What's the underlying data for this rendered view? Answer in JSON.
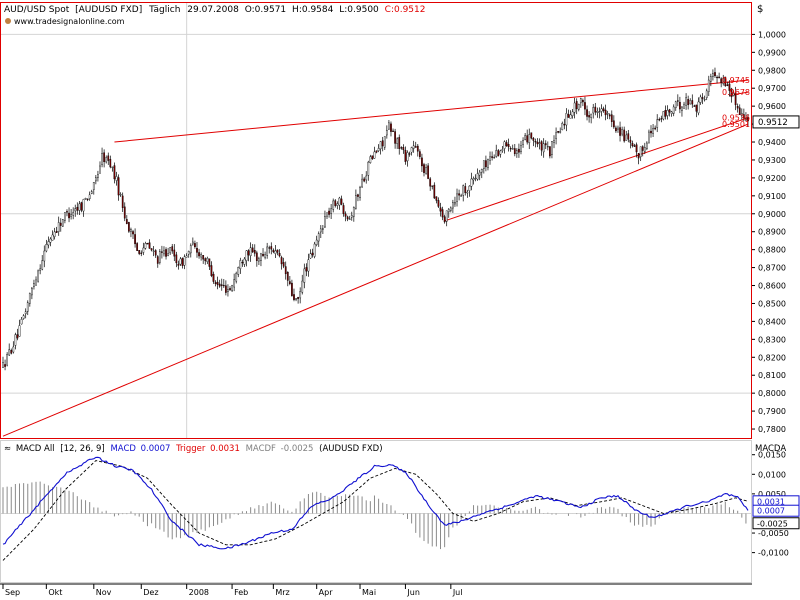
{
  "colors": {
    "up": "#ffffff",
    "down": "#7a0000",
    "wick": "#000000",
    "trend": "#e00000",
    "macd": "#1010d0",
    "trigger": "#000000",
    "hist": "#8a8a8a",
    "grid": "#d4d4d4",
    "frame": "#e00000",
    "label_red": "#e00000",
    "label_blue": "#1010d0"
  },
  "header": {
    "symbol": "AUD/USD Spot",
    "source": "[AUDUSD FXD]",
    "period": "Täglich",
    "date": "29.07.2008",
    "open_label": "O:",
    "open": "0.9571",
    "high_label": "H:",
    "high": "0.9584",
    "low_label": "L:",
    "low": "0.9500",
    "close_label": "C:",
    "close": "0.9512",
    "site": "www.tradesignalonline.com",
    "currency_label": "$"
  },
  "macd_header": {
    "name": "MACD All",
    "params": "[12, 26, 9]",
    "macd_label": "MACD",
    "macd_value": "0.0007",
    "trigger_label": "Trigger",
    "trigger_value": "0.0031",
    "macdf_label": "MACDF",
    "macdf_value": "-0.0025",
    "source": "(AUDUSD FXD)",
    "axis_title": "MACDA"
  },
  "chart_data": [
    {
      "type": "candlestick",
      "title": "AUD/USD Spot [AUDUSD FXD] Täglich",
      "ylim": [
        0.775,
        1.0175
      ],
      "y_ticks": [
        "1,0000",
        "0,9900",
        "0,9800",
        "0,9700",
        "0,9600",
        "0,9500",
        "0,9400",
        "0,9300",
        "0,9200",
        "0,9100",
        "0,9000",
        "0,8900",
        "0,8800",
        "0,8700",
        "0,8600",
        "0,8500",
        "0,8400",
        "0,8300",
        "0,8200",
        "0,8100",
        "0,8000",
        "0,7900",
        "0,7800"
      ],
      "x_ticks": [
        "Sep",
        "Okt",
        "Nov",
        "Dez",
        "2008",
        "Feb",
        "Mrz",
        "Apr",
        "Mai",
        "Jun",
        "Jul"
      ],
      "anchors": [
        [
          0,
          0.815
        ],
        [
          8,
          0.835
        ],
        [
          15,
          0.862
        ],
        [
          22,
          0.885
        ],
        [
          30,
          0.899
        ],
        [
          38,
          0.905
        ],
        [
          44,
          0.915
        ],
        [
          48,
          0.932
        ],
        [
          52,
          0.928
        ],
        [
          55,
          0.918
        ],
        [
          60,
          0.895
        ],
        [
          65,
          0.88
        ],
        [
          70,
          0.882
        ],
        [
          75,
          0.875
        ],
        [
          80,
          0.88
        ],
        [
          86,
          0.872
        ],
        [
          92,
          0.882
        ],
        [
          98,
          0.875
        ],
        [
          104,
          0.86
        ],
        [
          110,
          0.858
        ],
        [
          114,
          0.87
        ],
        [
          118,
          0.88
        ],
        [
          124,
          0.875
        ],
        [
          130,
          0.882
        ],
        [
          136,
          0.87
        ],
        [
          140,
          0.855
        ],
        [
          143,
          0.85
        ],
        [
          146,
          0.868
        ],
        [
          150,
          0.878
        ],
        [
          156,
          0.898
        ],
        [
          162,
          0.908
        ],
        [
          168,
          0.898
        ],
        [
          174,
          0.918
        ],
        [
          178,
          0.93
        ],
        [
          183,
          0.938
        ],
        [
          187,
          0.948
        ],
        [
          191,
          0.94
        ],
        [
          195,
          0.932
        ],
        [
          199,
          0.938
        ],
        [
          203,
          0.928
        ],
        [
          207,
          0.918
        ],
        [
          211,
          0.905
        ],
        [
          214,
          0.896
        ],
        [
          217,
          0.905
        ],
        [
          221,
          0.912
        ],
        [
          225,
          0.915
        ],
        [
          230,
          0.922
        ],
        [
          235,
          0.93
        ],
        [
          240,
          0.935
        ],
        [
          245,
          0.94
        ],
        [
          250,
          0.934
        ],
        [
          255,
          0.945
        ],
        [
          260,
          0.937
        ],
        [
          265,
          0.935
        ],
        [
          270,
          0.948
        ],
        [
          275,
          0.958
        ],
        [
          280,
          0.962
        ],
        [
          284,
          0.955
        ],
        [
          288,
          0.96
        ],
        [
          292,
          0.955
        ],
        [
          296,
          0.95
        ],
        [
          300,
          0.945
        ],
        [
          304,
          0.938
        ],
        [
          308,
          0.932
        ],
        [
          312,
          0.942
        ],
        [
          316,
          0.95
        ],
        [
          320,
          0.955
        ],
        [
          324,
          0.958
        ],
        [
          328,
          0.961
        ],
        [
          332,
          0.963
        ],
        [
          336,
          0.96
        ],
        [
          340,
          0.966
        ],
        [
          343,
          0.976
        ],
        [
          346,
          0.978
        ],
        [
          349,
          0.974
        ],
        [
          352,
          0.97
        ],
        [
          355,
          0.962
        ],
        [
          358,
          0.956
        ],
        [
          361,
          0.951
        ]
      ],
      "trendlines": [
        {
          "from": [
            0,
            0.776
          ],
          "to": [
            361,
            0.95
          ]
        },
        {
          "from": [
            54,
            0.94
          ],
          "to": [
            361,
            0.9745
          ]
        },
        {
          "from": [
            214,
            0.896
          ],
          "to": [
            361,
            0.9535
          ]
        },
        {
          "from": [
            352,
            0.966
          ],
          "to": [
            361,
            0.9678
          ]
        }
      ],
      "price_labels": [
        {
          "text": "0.9745",
          "value": 0.9745,
          "color": "#e00000"
        },
        {
          "text": "0.9678",
          "value": 0.9678,
          "color": "#e00000"
        },
        {
          "text": "0.9536",
          "value": 0.9536,
          "color": "#e00000"
        },
        {
          "text": "0.9501",
          "value": 0.9501,
          "color": "#e00000"
        }
      ],
      "last_price": {
        "text": "0.9512",
        "value": 0.9512
      }
    },
    {
      "type": "macd",
      "ylim": [
        -0.0175,
        0.0185
      ],
      "y_ticks": [
        "0,0150",
        "0,0100",
        "0,0050",
        "-0,0050",
        "-0,0100"
      ],
      "tick_values": [
        0.015,
        0.01,
        0.005,
        -0.005,
        -0.01
      ],
      "macd_anchors": [
        [
          0,
          -0.008
        ],
        [
          15,
          0.001
        ],
        [
          30,
          0.01
        ],
        [
          45,
          0.0145
        ],
        [
          55,
          0.012
        ],
        [
          63,
          0.011
        ],
        [
          72,
          0.006
        ],
        [
          82,
          -0.002
        ],
        [
          95,
          -0.008
        ],
        [
          108,
          -0.009
        ],
        [
          118,
          -0.0075
        ],
        [
          130,
          -0.005
        ],
        [
          140,
          -0.004
        ],
        [
          150,
          0.002
        ],
        [
          160,
          0.004
        ],
        [
          170,
          0.008
        ],
        [
          180,
          0.012
        ],
        [
          188,
          0.0125
        ],
        [
          196,
          0.01
        ],
        [
          205,
          0.003
        ],
        [
          214,
          -0.003
        ],
        [
          222,
          -0.002
        ],
        [
          232,
          0.0
        ],
        [
          245,
          0.002
        ],
        [
          258,
          0.0045
        ],
        [
          270,
          0.003
        ],
        [
          280,
          0.0015
        ],
        [
          290,
          0.004
        ],
        [
          298,
          0.0045
        ],
        [
          306,
          0.001
        ],
        [
          314,
          -0.001
        ],
        [
          322,
          0.0
        ],
        [
          332,
          0.002
        ],
        [
          342,
          0.003
        ],
        [
          350,
          0.005
        ],
        [
          356,
          0.004
        ],
        [
          361,
          0.0007
        ]
      ],
      "trigger_anchors": [
        [
          0,
          -0.012
        ],
        [
          15,
          -0.004
        ],
        [
          30,
          0.006
        ],
        [
          45,
          0.0135
        ],
        [
          58,
          0.012
        ],
        [
          70,
          0.009
        ],
        [
          82,
          0.002
        ],
        [
          95,
          -0.005
        ],
        [
          108,
          -0.008
        ],
        [
          120,
          -0.008
        ],
        [
          132,
          -0.0065
        ],
        [
          145,
          -0.003
        ],
        [
          155,
          0.0
        ],
        [
          165,
          0.003
        ],
        [
          178,
          0.009
        ],
        [
          190,
          0.0115
        ],
        [
          200,
          0.01
        ],
        [
          210,
          0.005
        ],
        [
          218,
          0.0
        ],
        [
          228,
          -0.002
        ],
        [
          240,
          0.0
        ],
        [
          252,
          0.003
        ],
        [
          265,
          0.004
        ],
        [
          278,
          0.002
        ],
        [
          290,
          0.003
        ],
        [
          300,
          0.004
        ],
        [
          310,
          0.002
        ],
        [
          320,
          0.0
        ],
        [
          332,
          0.001
        ],
        [
          345,
          0.0025
        ],
        [
          355,
          0.004
        ],
        [
          361,
          0.0031
        ]
      ],
      "value_labels": [
        {
          "text": "0.0031",
          "value": 0.0031,
          "color": "#1010d0"
        },
        {
          "text": "0.0007",
          "value": 0.0007,
          "color": "#1010d0"
        },
        {
          "text": "-0.0025",
          "value": -0.0025,
          "color": "#000000"
        }
      ]
    }
  ]
}
